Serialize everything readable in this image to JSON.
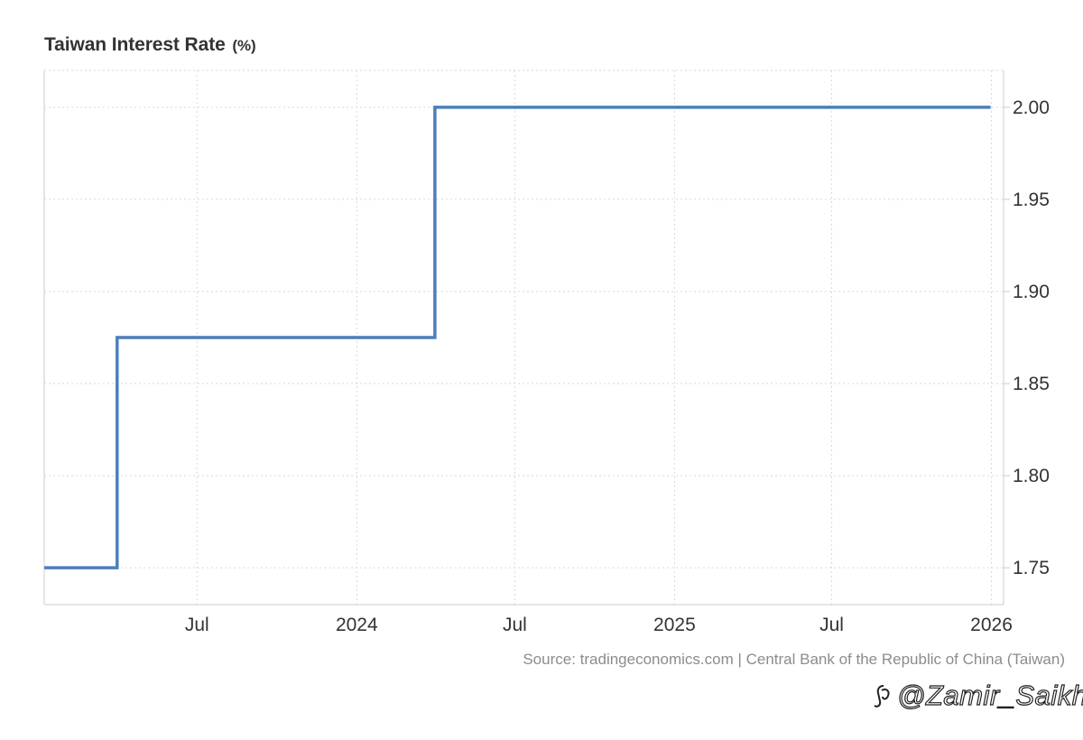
{
  "title": {
    "main": "Taiwan Interest Rate",
    "unit": "(%)"
  },
  "source": "Source: tradingeconomics.com | Central Bank of the Republic of China (Taiwan)",
  "watermark": {
    "text": "@Zamir_Saikh"
  },
  "colors": {
    "line": "#4d7fb9",
    "grid": "#d9d9d9",
    "axis": "#cccccc",
    "text": "#333333",
    "source": "#8c8c8c"
  },
  "chart_data": {
    "type": "line",
    "step": true,
    "title": "Taiwan Interest Rate (%)",
    "xlabel": "",
    "ylabel": "",
    "x_tick_labels": [
      {
        "date": "2023-07-01",
        "label": "Jul"
      },
      {
        "date": "2024-01-01",
        "label": "2024"
      },
      {
        "date": "2024-07-01",
        "label": "Jul"
      },
      {
        "date": "2025-01-01",
        "label": "2025"
      },
      {
        "date": "2025-07-01",
        "label": "Jul"
      },
      {
        "date": "2026-01-01",
        "label": "2026"
      }
    ],
    "y_ticks": [
      1.75,
      1.8,
      1.85,
      1.9,
      1.95,
      2.0
    ],
    "y_tick_labels": [
      "1.75",
      "1.80",
      "1.85",
      "1.90",
      "1.95",
      "2.00"
    ],
    "xlim": [
      "2023-01-06",
      "2026-01-15"
    ],
    "ylim": [
      1.73,
      2.02
    ],
    "grid": true,
    "y_axis_side": "right",
    "series": [
      {
        "values": [
          {
            "x": "2023-01-06",
            "y": 1.75
          },
          {
            "x": "2023-03-31",
            "y": 1.875
          },
          {
            "x": "2024-03-31",
            "y": 2.0
          },
          {
            "x": "2025-12-31",
            "y": 2.0
          }
        ]
      }
    ]
  }
}
